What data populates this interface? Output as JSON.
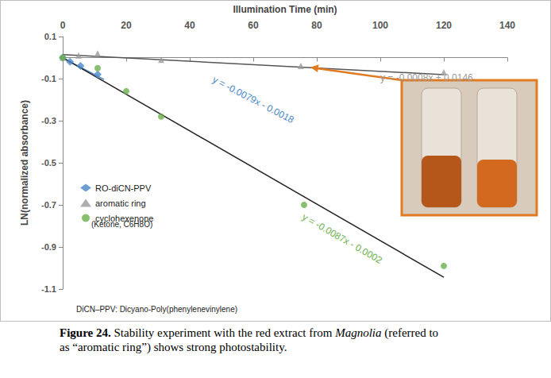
{
  "chart_data": {
    "type": "scatter",
    "x_label": "Illumination Time (min)",
    "y_label": "LN(normalized absorbance)",
    "xlim": [
      0,
      140
    ],
    "xticks": [
      0,
      20,
      40,
      60,
      80,
      100,
      120,
      140
    ],
    "ylim": [
      -1.1,
      0.1
    ],
    "yticks": [
      -1.1,
      -0.9,
      -0.7,
      -0.5,
      -0.3,
      -0.1,
      0.1
    ],
    "grid": false,
    "legend": "left",
    "series": [
      {
        "name": "RO-diCN-PPV",
        "color": "#4a86c8",
        "marker": "diamond",
        "x": [
          0,
          2.3,
          5.6,
          11
        ],
        "values": [
          0,
          -0.02,
          -0.04,
          -0.08
        ]
      },
      {
        "name": "aromatic ring",
        "color": "#9a9a9a",
        "marker": "triangle",
        "x": [
          0,
          5,
          11,
          31,
          75,
          120
        ],
        "values": [
          0,
          0.01,
          0.02,
          -0.01,
          -0.04,
          -0.07
        ]
      },
      {
        "name": "cyclohexenone",
        "color": "#6ab04c",
        "marker": "circle",
        "x": [
          0,
          11,
          20,
          31,
          76,
          120
        ],
        "values": [
          0,
          -0.05,
          -0.16,
          -0.28,
          -0.7,
          -0.99
        ]
      }
    ],
    "trendlines": [
      {
        "color": "#4a86c8",
        "x": [
          0,
          13
        ],
        "values": [
          -0.0018,
          -0.1045
        ]
      },
      {
        "color": "#555555",
        "x": [
          0,
          120
        ],
        "values": [
          0.0146,
          -0.0814
        ]
      },
      {
        "color": "#222222",
        "x": [
          0,
          120
        ],
        "values": [
          -0.0002,
          -1.0442
        ]
      }
    ],
    "annotations": [
      {
        "text": "y = -0.0079x - 0.0018",
        "color": "#4a86c8"
      },
      {
        "text": "y = -0.0008x + 0.0146",
        "color": "#9a9a9a"
      },
      {
        "text": "y = -0.0087x - 0.0002",
        "color": "#6ab04c"
      }
    ],
    "note": "(Ketone, C6H8O)",
    "footnote": "DiCN–PPV: Dicyano-Poly(phenylenevinylene)"
  },
  "caption": [
    {
      "text": "Figure 24.",
      "style": "bold"
    },
    {
      "text": " Stability experiment with the red extract from "
    },
    {
      "text": "Magnolia",
      "style": "italic"
    },
    {
      "text": " (referred to as “aromatic ring”) shows strong photostability."
    }
  ]
}
